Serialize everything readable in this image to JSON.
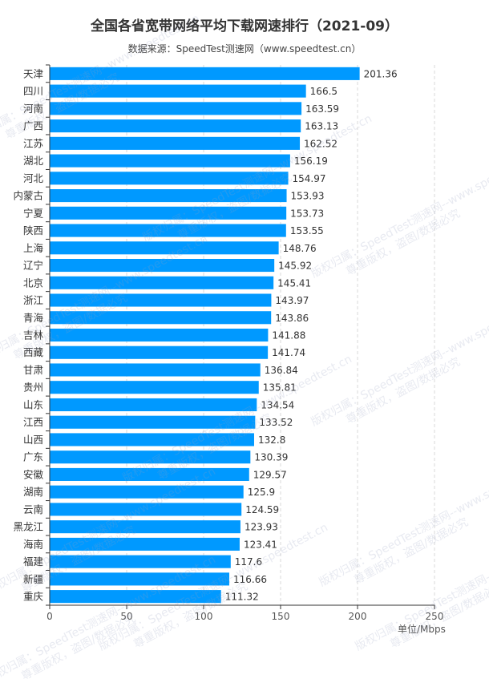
{
  "title": "全国各省宽带网络平均下载网速排行（2021-09）",
  "subtitle": "数据来源：SpeedTest测速网（www.speedtest.cn）",
  "unit_label": "单位/Mbps",
  "watermark": {
    "line1": "版权归属：SpeedTest测速网--www.speedtest.cn",
    "line2": "尊重版权，盗图/数据必究"
  },
  "colors": {
    "bar": "#0099ff",
    "grid": "#d9d9d9",
    "axis": "#333333",
    "text": "#333333"
  },
  "chart_data": {
    "type": "bar",
    "orientation": "horizontal",
    "title": "全国各省宽带网络平均下载网速排行（2021-09）",
    "subtitle": "数据来源：SpeedTest测速网（www.speedtest.cn）",
    "xlabel": "单位/Mbps",
    "ylabel": "",
    "xlim": [
      0,
      250
    ],
    "xticks": [
      0,
      50,
      100,
      150,
      200,
      250
    ],
    "grid": "vertical dashed",
    "categories": [
      "天津",
      "四川",
      "河南",
      "广西",
      "江苏",
      "湖北",
      "河北",
      "内蒙古",
      "宁夏",
      "陕西",
      "上海",
      "辽宁",
      "北京",
      "浙江",
      "青海",
      "吉林",
      "西藏",
      "甘肃",
      "贵州",
      "山东",
      "江西",
      "山西",
      "广东",
      "安徽",
      "湖南",
      "云南",
      "黑龙江",
      "海南",
      "福建",
      "新疆",
      "重庆"
    ],
    "values": [
      201.36,
      166.5,
      163.59,
      163.13,
      162.52,
      156.19,
      154.97,
      153.93,
      153.73,
      153.55,
      148.76,
      145.92,
      145.41,
      143.97,
      143.86,
      141.88,
      141.74,
      136.84,
      135.81,
      134.54,
      133.52,
      132.8,
      130.39,
      129.57,
      125.9,
      124.59,
      123.93,
      123.41,
      117.6,
      116.66,
      111.32
    ]
  }
}
